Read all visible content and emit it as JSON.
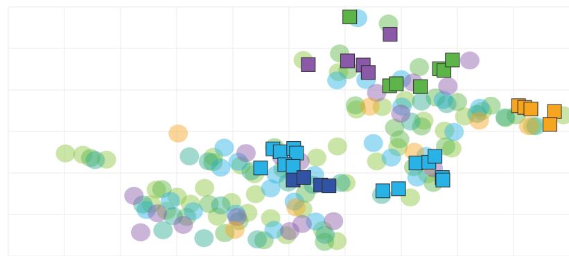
{
  "chart_data": {
    "type": "scatter",
    "title": "",
    "xlabel": "",
    "ylabel": "",
    "xlim": [
      0,
      100
    ],
    "ylim": [
      0,
      60
    ],
    "grid": true,
    "colors": {
      "green": "#5db54a",
      "purple": "#8a5aa8",
      "cyan": "#29b2e5",
      "navy": "#3153a4",
      "orange": "#f6a51f",
      "teal": "#2eaa93",
      "lightgreen": "#8cc63f"
    },
    "series": [
      {
        "marker": "square",
        "color": "green",
        "points": [
          [
            60.9,
            57.6
          ],
          [
            68.0,
            41.0
          ],
          [
            73.5,
            40.8
          ],
          [
            76.9,
            45.1
          ],
          [
            77.7,
            44.7
          ],
          [
            79.2,
            47.2
          ],
          [
            69.2,
            41.5
          ]
        ]
      },
      {
        "marker": "square",
        "color": "purple",
        "points": [
          [
            68.1,
            53.4
          ],
          [
            53.5,
            46.1
          ],
          [
            60.5,
            47.0
          ],
          [
            63.3,
            46.0
          ],
          [
            64.2,
            44.2
          ]
        ]
      },
      {
        "marker": "square",
        "color": "cyan",
        "points": [
          [
            47.2,
            25.8
          ],
          [
            48.5,
            25.1
          ],
          [
            50.9,
            25.9
          ],
          [
            51.4,
            24.8
          ],
          [
            49.3,
            22.0
          ],
          [
            50.8,
            21.6
          ],
          [
            45.0,
            21.2
          ],
          [
            72.7,
            22.4
          ],
          [
            75.0,
            22.6
          ],
          [
            76.1,
            24.0
          ],
          [
            77.4,
            18.9
          ],
          [
            77.5,
            18.3
          ],
          [
            66.8,
            15.7
          ],
          [
            69.6,
            16.2
          ]
        ]
      },
      {
        "marker": "square",
        "color": "navy",
        "points": [
          [
            50.8,
            18.3
          ],
          [
            52.7,
            18.9
          ],
          [
            55.7,
            17.1
          ],
          [
            57.2,
            16.9
          ]
        ]
      },
      {
        "marker": "square",
        "color": "orange",
        "points": [
          [
            91.0,
            36.2
          ],
          [
            92.1,
            35.8
          ],
          [
            93.2,
            35.4
          ],
          [
            97.4,
            34.8
          ],
          [
            96.6,
            31.7
          ]
        ]
      },
      {
        "marker": "circle",
        "color": "lightgreen",
        "points": [
          [
            10.2,
            24.7
          ],
          [
            13.3,
            24.4
          ],
          [
            17.5,
            23.2
          ],
          [
            25.5,
            12.5
          ],
          [
            26.4,
            16.0
          ],
          [
            28.2,
            10.9
          ],
          [
            30.1,
            14.3
          ],
          [
            32.5,
            12.6
          ],
          [
            35.0,
            16.4
          ],
          [
            37.3,
            9.5
          ],
          [
            39.8,
            13.0
          ],
          [
            42.7,
            10.4
          ],
          [
            44.1,
            14.9
          ],
          [
            46.8,
            9.1
          ],
          [
            49.6,
            5.0
          ],
          [
            52.5,
            11.3
          ],
          [
            56.1,
            6.2
          ],
          [
            58.6,
            3.6
          ],
          [
            36.6,
            23.9
          ],
          [
            41.5,
            21.8
          ],
          [
            43.9,
            19.7
          ],
          [
            55.0,
            23.7
          ],
          [
            58.7,
            26.4
          ],
          [
            52.6,
            47.2
          ],
          [
            58.9,
            44.3
          ],
          [
            62.1,
            35.3
          ],
          [
            66.7,
            35.9
          ],
          [
            70.8,
            37.6
          ],
          [
            74.1,
            32.6
          ],
          [
            77.8,
            30.2
          ],
          [
            81.4,
            33.6
          ],
          [
            84.5,
            34.9
          ],
          [
            88.7,
            33.2
          ],
          [
            93.5,
            31.3
          ],
          [
            99.0,
            33.9
          ],
          [
            65.7,
            22.8
          ],
          [
            69.5,
            26.2
          ],
          [
            74.8,
            19.7
          ],
          [
            79.1,
            25.9
          ],
          [
            71.7,
            14.1
          ],
          [
            60.2,
            17.6
          ]
        ]
      },
      {
        "marker": "circle",
        "color": "green",
        "points": [
          [
            14.7,
            23.6
          ],
          [
            27.4,
            16.1
          ],
          [
            31.8,
            9.4
          ],
          [
            35.8,
            12.5
          ],
          [
            38.6,
            5.5
          ],
          [
            41.1,
            8.4
          ],
          [
            45.6,
            3.8
          ],
          [
            53.0,
            15.0
          ],
          [
            56.4,
            3.4
          ],
          [
            36.5,
            22.6
          ],
          [
            49.0,
            21.0
          ],
          [
            47.5,
            26.2
          ],
          [
            59.1,
            48.8
          ],
          [
            60.6,
            44.8
          ],
          [
            73.3,
            45.5
          ],
          [
            67.8,
            56.0
          ],
          [
            76.2,
            38.2
          ],
          [
            80.1,
            37.1
          ],
          [
            61.9,
            36.3
          ],
          [
            68.9,
            30.9
          ],
          [
            73.7,
            31.2
          ],
          [
            90.6,
            33.9
          ],
          [
            86.1,
            36.2
          ],
          [
            72.3,
            21.4
          ],
          [
            75.8,
            17.6
          ],
          [
            78.0,
            26.4
          ],
          [
            69.8,
            28.1
          ]
        ]
      },
      {
        "marker": "circle",
        "color": "cyan",
        "points": [
          [
            24.6,
            11.1
          ],
          [
            28.9,
            13.3
          ],
          [
            33.0,
            10.8
          ],
          [
            37.9,
            21.3
          ],
          [
            41.0,
            22.7
          ],
          [
            38.5,
            26.1
          ],
          [
            47.8,
            19.6
          ],
          [
            46.8,
            16.3
          ],
          [
            54.6,
            19.5
          ],
          [
            51.0,
            13.1
          ],
          [
            47.4,
            6.3
          ],
          [
            54.8,
            8.3
          ],
          [
            40.6,
            10.2
          ],
          [
            65.1,
            27.2
          ],
          [
            68.3,
            23.7
          ],
          [
            70.2,
            36.0
          ],
          [
            77.6,
            37.6
          ],
          [
            63.8,
            42.4
          ],
          [
            70.1,
            42.6
          ],
          [
            62.3,
            57.3
          ],
          [
            84.1,
            35.7
          ],
          [
            74.5,
            24.1
          ],
          [
            79.5,
            29.9
          ],
          [
            72.9,
            18.9
          ],
          [
            58.6,
            42.3
          ]
        ]
      },
      {
        "marker": "circle",
        "color": "teal",
        "points": [
          [
            15.5,
            23.1
          ],
          [
            24.0,
            12.4
          ],
          [
            29.4,
            9.6
          ],
          [
            32.3,
            24.0
          ],
          [
            35.7,
            22.8
          ],
          [
            43.3,
            20.4
          ],
          [
            49.9,
            17.7
          ],
          [
            54.4,
            17.1
          ],
          [
            56.5,
            5.1
          ],
          [
            44.4,
            4.0
          ],
          [
            34.9,
            4.3
          ],
          [
            27.6,
            6.2
          ],
          [
            37.9,
            12.2
          ],
          [
            59.3,
            17.6
          ],
          [
            66.6,
            14.7
          ],
          [
            78.2,
            36.6
          ],
          [
            73.7,
            37.2
          ],
          [
            83.6,
            34.2
          ],
          [
            94.1,
            31.3
          ],
          [
            88.6,
            33.4
          ],
          [
            71.8,
            32.4
          ]
        ]
      },
      {
        "marker": "circle",
        "color": "purple",
        "points": [
          [
            22.4,
            14.5
          ],
          [
            23.6,
            5.7
          ],
          [
            26.6,
            10.3
          ],
          [
            31.2,
            7.5
          ],
          [
            40.8,
            9.4
          ],
          [
            42.4,
            24.8
          ],
          [
            50.2,
            6.0
          ],
          [
            52.0,
            22.8
          ],
          [
            58.0,
            8.4
          ],
          [
            48.7,
            24.0
          ],
          [
            65.7,
            39.3
          ],
          [
            72.2,
            41.8
          ],
          [
            82.3,
            47.1
          ],
          [
            78.4,
            40.9
          ],
          [
            70.0,
            34.3
          ],
          [
            75.8,
            21.1
          ],
          [
            52.4,
            7.7
          ]
        ]
      },
      {
        "marker": "circle",
        "color": "orange",
        "points": [
          [
            30.3,
            29.5
          ],
          [
            40.4,
            6.3
          ],
          [
            51.3,
            11.7
          ],
          [
            72.4,
            25.1
          ],
          [
            84.0,
            32.6
          ],
          [
            92.8,
            31.3
          ],
          [
            64.5,
            36.0
          ]
        ]
      }
    ]
  }
}
